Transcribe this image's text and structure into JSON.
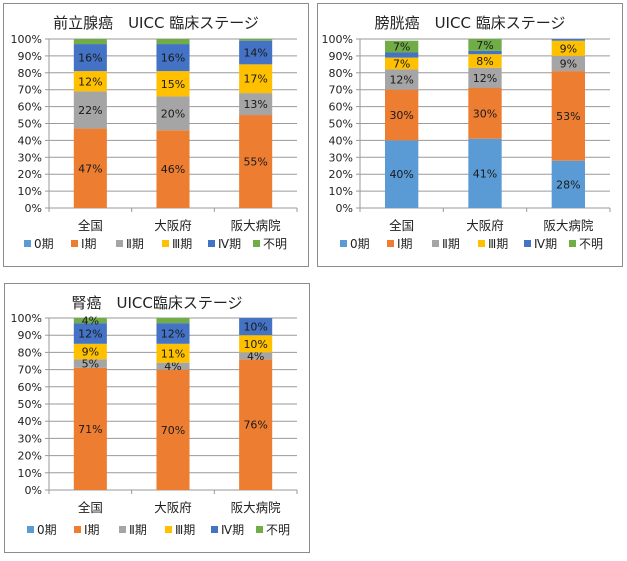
{
  "colors": {
    "stage0": "#5b9bd5",
    "stage1": "#ed7d31",
    "stage2": "#a5a5a5",
    "stage3": "#ffc000",
    "stage4": "#4472c4",
    "unknown": "#70ad47"
  },
  "chart_data": [
    {
      "type": "bar",
      "stacked": true,
      "percent": true,
      "title": "前立腺癌　UICC 臨床ステージ",
      "categories": [
        "全国",
        "大阪府",
        "阪大病院"
      ],
      "yticks": [
        "0%",
        "10%",
        "20%",
        "30%",
        "40%",
        "50%",
        "60%",
        "70%",
        "80%",
        "90%",
        "100%"
      ],
      "ylim": [
        0,
        100
      ],
      "grid": true,
      "legend_position": "bottom",
      "series": [
        {
          "name": "0期",
          "key": "stage0",
          "values": [
            0,
            0,
            0
          ],
          "labels": [
            "",
            "",
            ""
          ]
        },
        {
          "name": "Ⅰ期",
          "key": "stage1",
          "values": [
            47,
            46,
            55
          ],
          "labels": [
            "47%",
            "46%",
            "55%"
          ]
        },
        {
          "name": "Ⅱ期",
          "key": "stage2",
          "values": [
            22,
            20,
            13
          ],
          "labels": [
            "22%",
            "20%",
            "13%"
          ]
        },
        {
          "name": "Ⅲ期",
          "key": "stage3",
          "values": [
            12,
            15,
            17
          ],
          "labels": [
            "12%",
            "15%",
            "17%"
          ]
        },
        {
          "name": "Ⅳ期",
          "key": "stage4",
          "values": [
            16,
            16,
            14
          ],
          "labels": [
            "16%",
            "16%",
            "14%"
          ]
        },
        {
          "name": "不明",
          "key": "unknown",
          "values": [
            3,
            3,
            1
          ],
          "labels": [
            "",
            "",
            ""
          ]
        }
      ]
    },
    {
      "type": "bar",
      "stacked": true,
      "percent": true,
      "title": "膀胱癌　UICC 臨床ステージ",
      "categories": [
        "全国",
        "大阪府",
        "阪大病院"
      ],
      "yticks": [
        "0%",
        "10%",
        "20%",
        "30%",
        "40%",
        "50%",
        "60%",
        "70%",
        "80%",
        "90%",
        "100%"
      ],
      "ylim": [
        0,
        100
      ],
      "grid": true,
      "legend_position": "bottom",
      "series": [
        {
          "name": "0期",
          "key": "stage0",
          "values": [
            40,
            41,
            28
          ],
          "labels": [
            "40%",
            "41%",
            "28%"
          ]
        },
        {
          "name": "Ⅰ期",
          "key": "stage1",
          "values": [
            30,
            30,
            53
          ],
          "labels": [
            "30%",
            "30%",
            "53%"
          ]
        },
        {
          "name": "Ⅱ期",
          "key": "stage2",
          "values": [
            12,
            12,
            9
          ],
          "labels": [
            "12%",
            "12%",
            "9%"
          ]
        },
        {
          "name": "Ⅲ期",
          "key": "stage3",
          "values": [
            7,
            8,
            9
          ],
          "labels": [
            "7%",
            "8%",
            "9%"
          ]
        },
        {
          "name": "Ⅳ期",
          "key": "stage4",
          "values": [
            3,
            2,
            1
          ],
          "labels": [
            "",
            "",
            ""
          ]
        },
        {
          "name": "不明",
          "key": "unknown",
          "values": [
            7,
            7,
            0
          ],
          "labels": [
            "7%",
            "7%",
            ""
          ]
        }
      ]
    },
    {
      "type": "bar",
      "stacked": true,
      "percent": true,
      "title": "腎癌　UICC臨床ステージ",
      "categories": [
        "全国",
        "大阪府",
        "阪大病院"
      ],
      "yticks": [
        "0%",
        "10%",
        "20%",
        "30%",
        "40%",
        "50%",
        "60%",
        "70%",
        "80%",
        "90%",
        "100%"
      ],
      "ylim": [
        0,
        100
      ],
      "grid": true,
      "legend_position": "bottom",
      "series": [
        {
          "name": "0期",
          "key": "stage0",
          "values": [
            0,
            0,
            0
          ],
          "labels": [
            "",
            "",
            ""
          ]
        },
        {
          "name": "Ⅰ期",
          "key": "stage1",
          "values": [
            71,
            70,
            76
          ],
          "labels": [
            "71%",
            "70%",
            "76%"
          ]
        },
        {
          "name": "Ⅱ期",
          "key": "stage2",
          "values": [
            5,
            4,
            4
          ],
          "labels": [
            "5%",
            "4%",
            "4%"
          ]
        },
        {
          "name": "Ⅲ期",
          "key": "stage3",
          "values": [
            9,
            11,
            10
          ],
          "labels": [
            "9%",
            "11%",
            "10%"
          ]
        },
        {
          "name": "Ⅳ期",
          "key": "stage4",
          "values": [
            12,
            12,
            10
          ],
          "labels": [
            "12%",
            "12%",
            "10%"
          ]
        },
        {
          "name": "不明",
          "key": "unknown",
          "values": [
            4,
            3,
            0
          ],
          "labels": [
            "4%",
            "",
            ""
          ]
        }
      ]
    }
  ]
}
